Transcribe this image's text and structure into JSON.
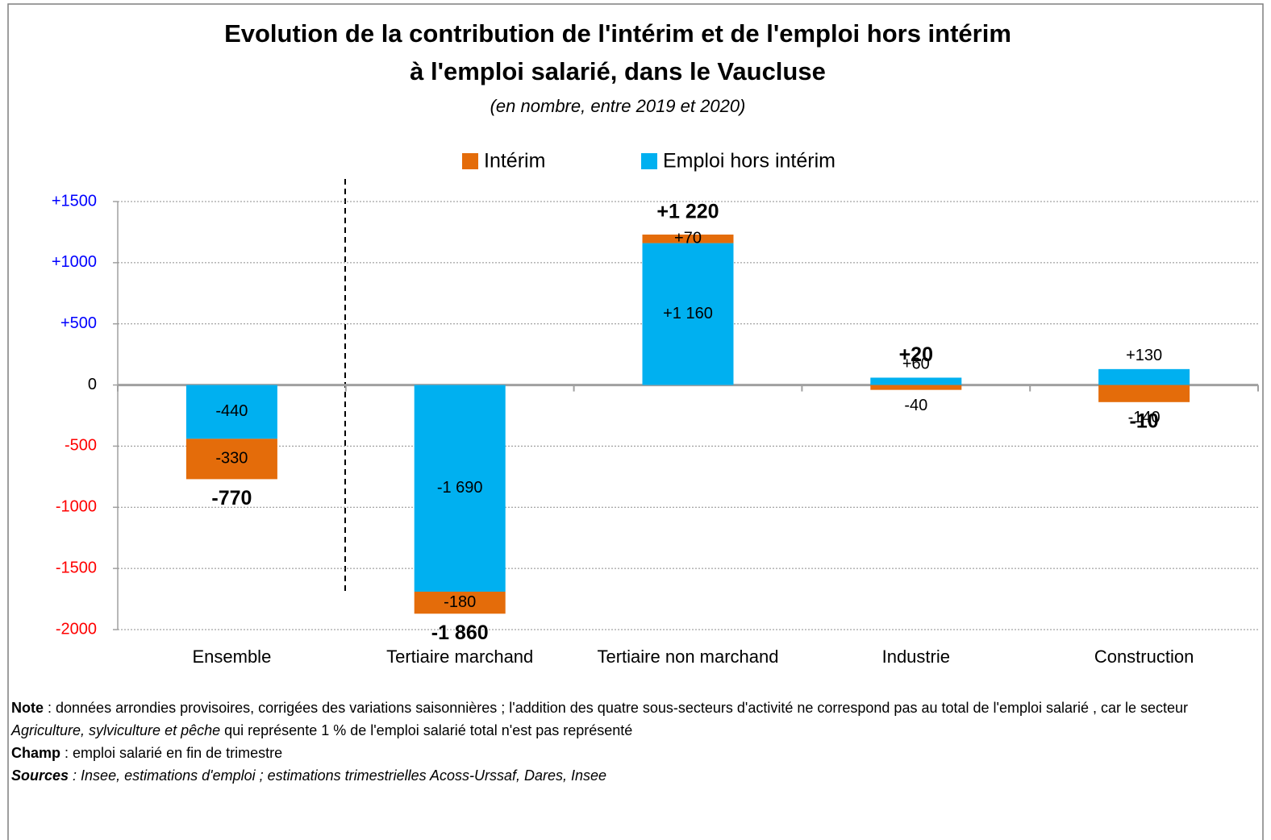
{
  "chart_data": {
    "type": "bar",
    "stacked": true,
    "title": [
      "Evolution de la contribution de l'intérim et de l'emploi hors intérim",
      "à l'emploi salarié, dans le Vaucluse"
    ],
    "subtitle": "(en nombre, entre 2019 et 2020)",
    "categories": [
      "Ensemble",
      "Tertiaire marchand",
      "Tertiaire non marchand",
      "Industrie",
      "Construction"
    ],
    "series": [
      {
        "name": "Intérim",
        "color": "#e46c0a",
        "values": [
          -330,
          -180,
          70,
          -40,
          -140
        ],
        "value_labels": [
          "-330",
          "-180",
          "+70",
          "-40",
          "-140"
        ]
      },
      {
        "name": "Emploi hors intérim",
        "color": "#00b0f0",
        "values": [
          -440,
          -1690,
          1160,
          60,
          130
        ],
        "value_labels": [
          "-440",
          "-1 690",
          "+1 160",
          "+60",
          "+130"
        ]
      }
    ],
    "totals": {
      "values": [
        -770,
        -1860,
        1220,
        20,
        -10
      ],
      "value_labels": [
        "-770",
        "-1 860",
        "+1 220",
        "+20",
        "-10"
      ]
    },
    "ylim": [
      -2000,
      1500
    ],
    "yticks": [
      -2000,
      -1500,
      -1000,
      -500,
      0,
      {
        "value": 500,
        "label": "+500"
      },
      {
        "value": 1000,
        "label": "+1000"
      },
      {
        "value": 1500,
        "label": "+1500"
      }
    ],
    "ytick_label_colors": {
      "negative": "#ff0000",
      "zero": "#000000",
      "positive": "#0000ff"
    },
    "grid": true,
    "legend": "top",
    "notes": [
      [
        "Note",
        " : données arrondies provisoires, corrigées des variations saisonnières ; l'addition des quatre sous-secteurs d'activité ne correspond pas au total de l'emploi salarié , car le secteur ",
        "Agriculture, sylviculture et pêche",
        " qui représente 1 % de l'emploi salarié total n'est pas représenté"
      ],
      [
        "Champ",
        " : emploi salarié en fin de trimestre"
      ],
      [
        "Sources",
        " : Insee, estimations d'emploi ; estimations trimestrielles Acoss-Urssaf, Dares, Insee"
      ]
    ]
  }
}
